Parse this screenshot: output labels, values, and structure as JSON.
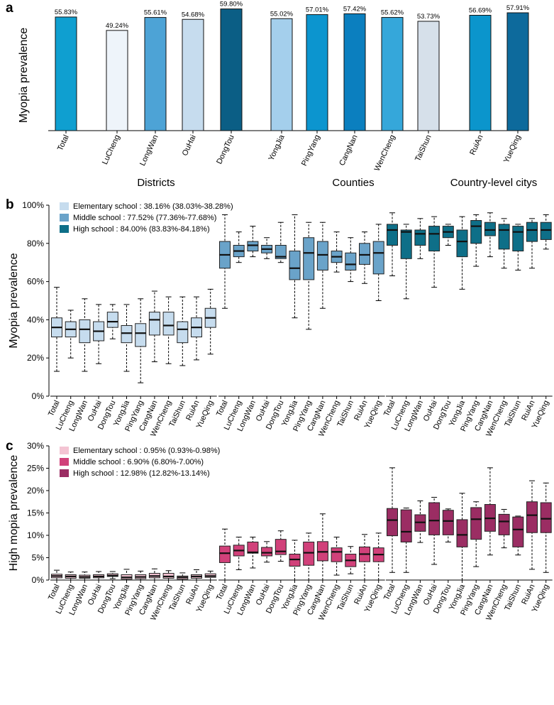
{
  "chart_data": [
    {
      "panel": "a",
      "type": "bar",
      "ylabel": "Myopia prevalence",
      "ylim": [
        0,
        60
      ],
      "categories": [
        "Total",
        "LuCheng",
        "LongWan",
        "OuHai",
        "DongTou",
        "YongJia",
        "PingYang",
        "CangNan",
        "WenCheng",
        "TaiShun",
        "RuiAn",
        "YueQing"
      ],
      "values": [
        55.83,
        49.24,
        55.61,
        54.68,
        59.8,
        55.02,
        57.01,
        57.42,
        55.62,
        53.73,
        56.69,
        57.91
      ],
      "labels": [
        "55.83%",
        "49.24%",
        "55.61%",
        "54.68%",
        "59.80%",
        "55.02%",
        "57.01%",
        "57.42%",
        "55.62%",
        "53.73%",
        "56.69%",
        "57.91%"
      ],
      "colors": [
        "#0f9fd0",
        "#eef4fa",
        "#4da3d6",
        "#c6dcee",
        "#0b5e85",
        "#a4cfec",
        "#0c95cf",
        "#0b7fbf",
        "#35a7da",
        "#d6e0ea",
        "#0b95cc",
        "#0d6a9c"
      ],
      "groups": [
        {
          "label": "Districts",
          "members": [
            1,
            2,
            3,
            4
          ]
        },
        {
          "label": "Counties",
          "members": [
            5,
            6,
            7,
            8,
            9
          ]
        },
        {
          "label": "Country-level citys",
          "members": [
            10,
            11
          ]
        }
      ]
    },
    {
      "panel": "b",
      "type": "box",
      "ylabel": "Myopia prevalence",
      "ylim": [
        0,
        100
      ],
      "yticks": [
        "0%",
        "20%",
        "40%",
        "60%",
        "80%",
        "100%"
      ],
      "categories": [
        "Total",
        "LuCheng",
        "LongWan",
        "OuHai",
        "DongTou",
        "YongJia",
        "PingYang",
        "CangNan",
        "WenCheng",
        "TaiShun",
        "RuiAn",
        "YueQing"
      ],
      "series": [
        {
          "name": "Elementary school",
          "legend": "Elementary school : 38.16% (38.03%-38.28%)",
          "color": "#c6dcee",
          "boxes": [
            [
              13,
              31,
              36,
              41,
              57
            ],
            [
              20,
              31,
              35,
              39,
              45
            ],
            [
              13,
              28,
              35,
              40,
              51
            ],
            [
              17,
              29,
              34,
              39,
              48
            ],
            [
              30,
              36,
              39,
              44,
              48
            ],
            [
              13,
              28,
              33,
              37,
              48
            ],
            [
              7,
              26,
              33,
              38,
              51
            ],
            [
              18,
              32,
              40,
              44,
              55
            ],
            [
              17,
              32,
              37,
              44,
              52
            ],
            [
              16,
              28,
              35,
              39,
              52
            ],
            [
              19,
              31,
              36,
              41,
              52
            ],
            [
              22,
              36,
              41,
              46,
              56
            ]
          ]
        },
        {
          "name": "Middle school",
          "legend": "Middle school : 77.52% (77.36%-77.68%)",
          "color": "#6aa3c9",
          "boxes": [
            [
              46,
              67,
              74,
              81,
              95
            ],
            [
              70,
              73,
              76,
              79,
              86
            ],
            [
              73,
              76,
              79,
              81,
              89
            ],
            [
              72,
              75,
              77,
              79,
              83
            ],
            [
              70,
              72,
              73,
              79,
              91
            ],
            [
              41,
              61,
              67,
              76,
              95
            ],
            [
              35,
              61,
              75,
              83,
              91
            ],
            [
              46,
              66,
              74,
              81,
              91
            ],
            [
              65,
              70,
              73,
              76,
              86
            ],
            [
              60,
              66,
              69,
              75,
              83
            ],
            [
              59,
              69,
              74,
              80,
              86
            ],
            [
              50,
              64,
              75,
              81,
              90
            ]
          ]
        },
        {
          "name": "High school",
          "legend": "High school : 84.00% (83.83%-84.18%)",
          "color": "#0e6f88",
          "boxes": [
            [
              63,
              79,
              87,
              90,
              96
            ],
            [
              51,
              72,
              86,
              87,
              90
            ],
            [
              72,
              79,
              85,
              87,
              93
            ],
            [
              57,
              76,
              85,
              89,
              94
            ],
            [
              79,
              83,
              86,
              89,
              90
            ],
            [
              56,
              73,
              81,
              87,
              94
            ],
            [
              68,
              80,
              89,
              92,
              95
            ],
            [
              73,
              84,
              87,
              91,
              96
            ],
            [
              67,
              77,
              87,
              90,
              93
            ],
            [
              66,
              76,
              86,
              89,
              90
            ],
            [
              67,
              81,
              87,
              91,
              93
            ],
            [
              77,
              82,
              87,
              91,
              95
            ]
          ]
        }
      ]
    },
    {
      "panel": "c",
      "type": "box",
      "ylabel": "High mopia prevalence",
      "ylim": [
        0,
        30
      ],
      "yticks": [
        "0%",
        "5%",
        "10%",
        "15%",
        "20%",
        "25%",
        "30%"
      ],
      "categories": [
        "Total",
        "LuCheng",
        "LongWan",
        "OuHai",
        "DongTou",
        "YongJia",
        "PingYang",
        "CangNan",
        "WenCheng",
        "TaiShun",
        "RuiAn",
        "YueQing"
      ],
      "series": [
        {
          "name": "Elementary school",
          "legend": "Elementary school : 0.95% (0.93%-0.98%)",
          "color": "#f4c4d3",
          "boxes": [
            [
              0,
              0.5,
              0.9,
              1.3,
              2.2
            ],
            [
              0,
              0.4,
              0.8,
              1.2,
              1.8
            ],
            [
              0,
              0.4,
              0.7,
              1.1,
              1.8
            ],
            [
              0,
              0.5,
              0.8,
              1.2,
              1.9
            ],
            [
              0.3,
              0.8,
              1.0,
              1.4,
              1.9
            ],
            [
              0,
              0.2,
              0.6,
              1.2,
              2.4
            ],
            [
              0,
              0.3,
              0.7,
              1.2,
              2.0
            ],
            [
              0,
              0.5,
              0.9,
              1.5,
              2.5
            ],
            [
              0,
              0.4,
              0.8,
              1.5,
              2.1
            ],
            [
              0,
              0.2,
              0.6,
              0.9,
              1.6
            ],
            [
              0,
              0.4,
              0.8,
              1.2,
              2.3
            ],
            [
              0,
              0.6,
              0.9,
              1.4,
              2.0
            ]
          ]
        },
        {
          "name": "Middle school",
          "legend": "Middle school : 6.90% (6.80%-7.00%)",
          "color": "#d1417a",
          "boxes": [
            [
              0,
              3.9,
              6.0,
              7.6,
              11.4
            ],
            [
              2.3,
              5.4,
              6.6,
              7.8,
              9.6
            ],
            [
              2.7,
              6.0,
              6.2,
              8.5,
              9.6
            ],
            [
              4.0,
              5.4,
              6.1,
              7.3,
              8.6
            ],
            [
              4.2,
              5.7,
              6.4,
              9.1,
              11.0
            ],
            [
              0,
              3.1,
              4.6,
              5.8,
              8.9
            ],
            [
              0,
              3.3,
              6.1,
              8.5,
              10.5
            ],
            [
              0,
              4.3,
              6.3,
              8.6,
              14.8
            ],
            [
              1.1,
              4.1,
              6.3,
              7.2,
              9.6
            ],
            [
              1.4,
              3.0,
              4.4,
              5.8,
              7.5
            ],
            [
              0,
              4.1,
              5.8,
              7.4,
              10.2
            ],
            [
              0,
              4.1,
              5.7,
              7.2,
              10.5
            ]
          ]
        },
        {
          "name": "High school",
          "legend": "High school : 12.98% (12.82%-13.14%)",
          "color": "#9b2d63",
          "boxes": [
            [
              1.7,
              9.9,
              13.4,
              16.0,
              25.1
            ],
            [
              1.7,
              8.5,
              10.8,
              15.7,
              16.1
            ],
            [
              8.4,
              10.9,
              12.9,
              14.6,
              17.7
            ],
            [
              3.5,
              10.1,
              13.3,
              17.3,
              18.5
            ],
            [
              8.5,
              10.1,
              13.2,
              15.6,
              15.9
            ],
            [
              0,
              7.4,
              10.1,
              13.5,
              19.4
            ],
            [
              3.0,
              9.1,
              13.6,
              16.2,
              17.5
            ],
            [
              5.6,
              10.9,
              13.8,
              16.9,
              25.1
            ],
            [
              7.2,
              10.1,
              13.1,
              14.7,
              15.8
            ],
            [
              5.6,
              7.4,
              11.3,
              14.1,
              14.3
            ],
            [
              2.4,
              10.6,
              14.5,
              17.5,
              22.2
            ],
            [
              1.7,
              10.6,
              13.7,
              17.3,
              21.7
            ]
          ]
        }
      ]
    }
  ]
}
